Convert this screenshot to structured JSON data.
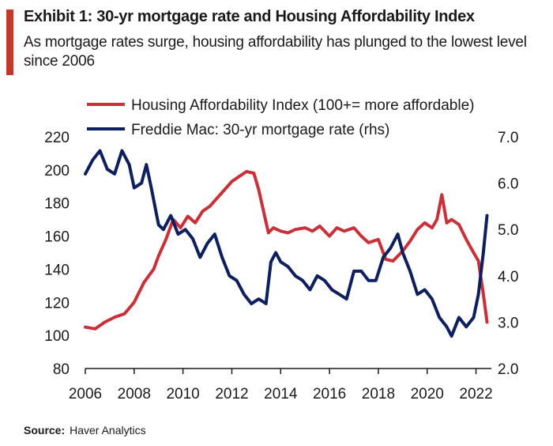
{
  "header": {
    "title": "Exhibit 1: 30-yr mortgage rate and Housing Affordability Index",
    "subtitle": "As mortgage rates surge, housing affordability has plunged to the lowest level since 2006"
  },
  "source": {
    "label": "Source:",
    "text": "Haver Analytics"
  },
  "colors": {
    "accent": "#c0392b",
    "hai": "#c8303a",
    "mortgage": "#0d1f5c"
  },
  "chart_data": {
    "type": "line",
    "legend_position": "top",
    "grid": false,
    "x_ticks": [
      "2006",
      "2008",
      "2010",
      "2012",
      "2014",
      "2016",
      "2018",
      "2020",
      "2022"
    ],
    "xlim": [
      2006,
      2022.5
    ],
    "y_left": {
      "ticks": [
        "220",
        "200",
        "180",
        "160",
        "140",
        "120",
        "100",
        "80"
      ],
      "lim": [
        80,
        220
      ]
    },
    "y_right": {
      "ticks": [
        "7.0",
        "6.0",
        "5.0",
        "4.0",
        "3.0",
        "2.0"
      ],
      "lim": [
        2.0,
        7.0
      ]
    },
    "series": [
      {
        "name": "Housing Affordability Index (100+= more affordable)",
        "axis": "left",
        "color": "#c8303a",
        "x": [
          2006.0,
          2006.4,
          2006.8,
          2007.2,
          2007.6,
          2008.0,
          2008.4,
          2008.8,
          2009.0,
          2009.3,
          2009.6,
          2009.9,
          2010.2,
          2010.5,
          2010.8,
          2011.1,
          2011.4,
          2011.7,
          2012.0,
          2012.3,
          2012.6,
          2012.9,
          2013.1,
          2013.3,
          2013.5,
          2013.7,
          2014.0,
          2014.3,
          2014.6,
          2015.0,
          2015.3,
          2015.6,
          2016.0,
          2016.3,
          2016.6,
          2017.0,
          2017.3,
          2017.6,
          2018.0,
          2018.3,
          2018.6,
          2019.0,
          2019.3,
          2019.6,
          2019.9,
          2020.2,
          2020.4,
          2020.6,
          2020.8,
          2021.0,
          2021.3,
          2021.6,
          2021.9,
          2022.1,
          2022.3,
          2022.45
        ],
        "y": [
          105,
          104,
          108,
          111,
          113,
          120,
          132,
          140,
          148,
          158,
          170,
          165,
          172,
          168,
          175,
          178,
          183,
          188,
          193,
          196,
          199,
          198,
          188,
          175,
          162,
          165,
          163,
          162,
          164,
          165,
          163,
          166,
          160,
          165,
          163,
          165,
          160,
          156,
          158,
          146,
          145,
          151,
          157,
          164,
          168,
          165,
          170,
          185,
          168,
          170,
          167,
          158,
          150,
          145,
          125,
          108
        ]
      },
      {
        "name": "Freddie Mac: 30-yr mortgage rate (rhs)",
        "axis": "right",
        "color": "#0d1f5c",
        "x": [
          2006.0,
          2006.3,
          2006.6,
          2006.9,
          2007.2,
          2007.5,
          2007.8,
          2008.0,
          2008.3,
          2008.5,
          2008.7,
          2009.0,
          2009.2,
          2009.5,
          2009.8,
          2010.1,
          2010.4,
          2010.7,
          2011.0,
          2011.3,
          2011.6,
          2011.9,
          2012.2,
          2012.5,
          2012.8,
          2013.1,
          2013.4,
          2013.6,
          2013.8,
          2014.0,
          2014.3,
          2014.6,
          2014.9,
          2015.2,
          2015.5,
          2015.8,
          2016.1,
          2016.4,
          2016.7,
          2017.0,
          2017.3,
          2017.6,
          2017.9,
          2018.2,
          2018.5,
          2018.8,
          2019.0,
          2019.3,
          2019.6,
          2019.9,
          2020.2,
          2020.5,
          2020.8,
          2021.0,
          2021.3,
          2021.6,
          2021.9,
          2022.1,
          2022.3,
          2022.45
        ],
        "y": [
          6.2,
          6.5,
          6.7,
          6.3,
          6.2,
          6.7,
          6.4,
          5.9,
          6.0,
          6.4,
          5.9,
          5.1,
          5.0,
          5.3,
          4.9,
          5.0,
          4.8,
          4.4,
          4.7,
          4.9,
          4.4,
          4.0,
          3.9,
          3.6,
          3.4,
          3.5,
          3.4,
          4.3,
          4.5,
          4.3,
          4.2,
          4.0,
          3.9,
          3.7,
          4.0,
          3.9,
          3.7,
          3.6,
          3.5,
          4.1,
          4.1,
          3.9,
          3.9,
          4.4,
          4.6,
          4.9,
          4.5,
          4.1,
          3.6,
          3.7,
          3.5,
          3.1,
          2.9,
          2.7,
          3.1,
          2.9,
          3.1,
          3.6,
          4.5,
          5.3
        ]
      }
    ]
  }
}
